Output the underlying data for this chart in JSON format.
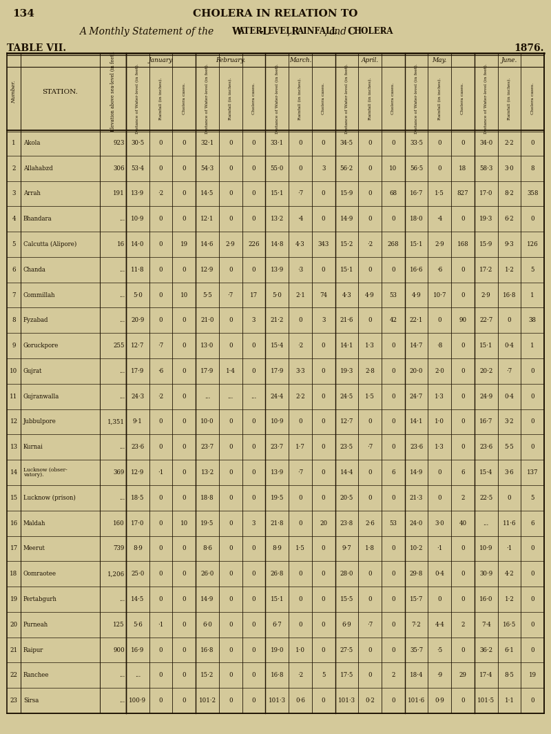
{
  "page_number": "134",
  "header_title": "CHOLERA IN RELATION TO",
  "table_label": "TABLE VII.",
  "year": "1876.",
  "bg_color": "#d4c99a",
  "months": [
    "January.",
    "February.",
    "March.",
    "April.",
    "May.",
    "June."
  ],
  "rows": [
    [
      1,
      "Akola",
      "923",
      "30·5",
      "0",
      "0",
      "32·1",
      "0",
      "0",
      "33·1",
      "0",
      "0",
      "34·5",
      "0",
      "0",
      "33·5",
      "0",
      "0",
      "34·0",
      "2·2",
      "0"
    ],
    [
      2,
      "Allahabzd",
      "306",
      "53·4",
      "0",
      "0",
      "54·3",
      "0",
      "0",
      "55·0",
      "0",
      "3",
      "56·2",
      "0",
      "10",
      "56·5",
      "0",
      "18",
      "58·3",
      "3·0",
      "8"
    ],
    [
      3,
      "Arrah",
      "191",
      "13·9",
      "·2",
      "0",
      "14·5",
      "0",
      "0",
      "15·1",
      "·7",
      "0",
      "15·9",
      "0",
      "68",
      "16·7",
      "1·5",
      "827",
      "17·0",
      "8·2",
      "358"
    ],
    [
      4,
      "Bhandara",
      "...",
      "10·9",
      "0",
      "0",
      "12·1",
      "0",
      "0",
      "13·2",
      "·4",
      "0",
      "14·9",
      "0",
      "0",
      "18·0",
      "·4",
      "0",
      "19·3",
      "6·2",
      "0"
    ],
    [
      5,
      "Calcutta (Alipore)",
      "16",
      "14·0",
      "0",
      "19",
      "14·6",
      "2·9",
      "226",
      "14·8",
      "4·3",
      "343",
      "15·2",
      "·2",
      "268",
      "15·1",
      "2·9",
      "168",
      "15·9",
      "9·3",
      "126"
    ],
    [
      6,
      "Chanda",
      "...",
      "11·8",
      "0",
      "0",
      "12·9",
      "0",
      "0",
      "13·9",
      "·3",
      "0",
      "15·1",
      "0",
      "0",
      "16·6",
      "·6",
      "0",
      "17·2",
      "1·2",
      "5"
    ],
    [
      7,
      "Commillah",
      "...",
      "5·0",
      "0",
      "10",
      "5·5",
      "·7",
      "17",
      "5·0",
      "2·1",
      "74",
      "4·3",
      "4·9",
      "53",
      "4·9",
      "10·7",
      "0",
      "2·9",
      "16·8",
      "1"
    ],
    [
      8,
      "Fyzabad",
      "...",
      "20·9",
      "0",
      "0",
      "21·0",
      "0",
      "3",
      "21·2",
      "0",
      "3",
      "21·6",
      "0",
      "42",
      "22·1",
      "0",
      "90",
      "22·7",
      "0",
      "38"
    ],
    [
      9,
      "Goruckpore",
      "255",
      "12·7",
      "·7",
      "0",
      "13·0",
      "0",
      "0",
      "15·4",
      "·2",
      "0",
      "14·1",
      "1·3",
      "0",
      "14·7",
      "·8",
      "0",
      "15·1",
      "0·4",
      "1"
    ],
    [
      10,
      "Gujrat",
      "...",
      "17·9",
      "·6",
      "0",
      "17·9",
      "1·4",
      "0",
      "17·9",
      "3·3",
      "0",
      "19·3",
      "2·8",
      "0",
      "20·0",
      "2·0",
      "0",
      "20·2",
      "·7",
      "0"
    ],
    [
      11,
      "Gujranwalla",
      "...",
      "24·3",
      "·2",
      "0",
      "...",
      "...",
      "...",
      "24·4",
      "2·2",
      "0",
      "24·5",
      "1·5",
      "0",
      "24·7",
      "1·3",
      "0",
      "24·9",
      "0·4",
      "0"
    ],
    [
      12,
      "Jubbulpore",
      "1,351",
      "9·1",
      "0",
      "0",
      "10·0",
      "0",
      "0",
      "10·9",
      "0",
      "0",
      "12·7",
      "0",
      "0",
      "14·1",
      "1·0",
      "0",
      "16·7",
      "3·2",
      "0"
    ],
    [
      13,
      "Kurnai",
      "...",
      "23·6",
      "0",
      "0",
      "23·7",
      "0",
      "0",
      "23·7",
      "1·7",
      "0",
      "23·5",
      "·7",
      "0",
      "23·6",
      "1·3",
      "0",
      "23·6",
      "5·5",
      "0"
    ],
    [
      14,
      "Lucknow (obser-\nvatory).",
      "369",
      "12·9",
      "·1",
      "0",
      "13·2",
      "0",
      "0",
      "13·9",
      "·7",
      "0",
      "14·4",
      "0",
      "6",
      "14·9",
      "0",
      "6",
      "15·4",
      "3·6",
      "137"
    ],
    [
      15,
      "Lucknow (prison)",
      "...",
      "18·5",
      "0",
      "0",
      "18·8",
      "0",
      "0",
      "19·5",
      "0",
      "0",
      "20·5",
      "0",
      "0",
      "21·3",
      "0",
      "2",
      "22·5",
      "0",
      "5"
    ],
    [
      16,
      "Maldah",
      "160",
      "17·0",
      "0",
      "10",
      "19·5",
      "0",
      "3",
      "21·8",
      "0",
      "20",
      "23·8",
      "2·6",
      "53",
      "24·0",
      "3·0",
      "40",
      "...",
      "11·6",
      "6"
    ],
    [
      17,
      "Meerut",
      "739",
      "8·9",
      "0",
      "0",
      "8·6",
      "0",
      "0",
      "8·9",
      "1·5",
      "0",
      "9·7",
      "1·8",
      "0",
      "10·2",
      "·1",
      "0",
      "10·9",
      "·1",
      "0"
    ],
    [
      18,
      "Oomraotee",
      "1,206",
      "25·0",
      "0",
      "0",
      "26·0",
      "0",
      "0",
      "26·8",
      "0",
      "0",
      "28·0",
      "0",
      "0",
      "29·8",
      "0·4",
      "0",
      "30·9",
      "4·2",
      "0"
    ],
    [
      19,
      "Pertabgurh",
      "...",
      "14·5",
      "0",
      "0",
      "14·9",
      "0",
      "0",
      "15·1",
      "0",
      "0",
      "15·5",
      "0",
      "0",
      "15·7",
      "0",
      "0",
      "16·0",
      "1·2",
      "0"
    ],
    [
      20,
      "Purneah",
      "125",
      "5·6",
      "·1",
      "0",
      "6·0",
      "0",
      "0",
      "6·7",
      "0",
      "0",
      "6·9",
      "·7",
      "0",
      "7·2",
      "4·4",
      "2",
      "7·4",
      "16·5",
      "0"
    ],
    [
      21,
      "Raipur",
      "900",
      "16·9",
      "0",
      "0",
      "16·8",
      "0",
      "0",
      "19·0",
      "1·0",
      "0",
      "27·5",
      "0",
      "0",
      "35·7",
      "·5",
      "0",
      "36·2",
      "6·1",
      "0"
    ],
    [
      22,
      "Ranchee",
      "...",
      "...",
      "0",
      "0",
      "15·2",
      "0",
      "0",
      "16·8",
      "·2",
      "5",
      "17·5",
      "0",
      "2",
      "18·4",
      "·9",
      "29",
      "17·4",
      "8·5",
      "19"
    ],
    [
      23,
      "Sirsa",
      "...",
      "100·9",
      "0",
      "0",
      "101·2",
      "0",
      "0",
      "101·3",
      "0·6",
      "0",
      "101·3",
      "0·2",
      "0",
      "101·6",
      "0·9",
      "0",
      "101·5",
      "1·1",
      "0"
    ]
  ]
}
